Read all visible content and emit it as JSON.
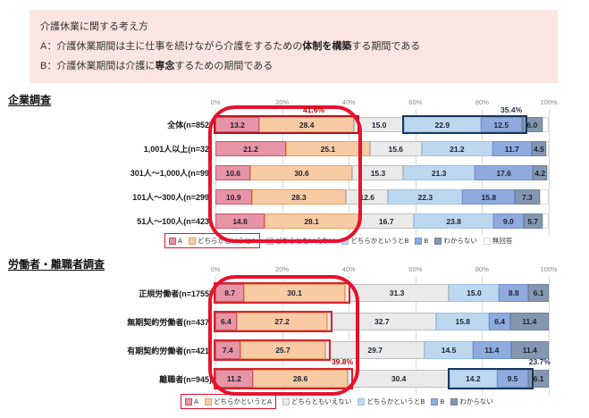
{
  "header": {
    "title": "介護休業に関する考え方",
    "line_a": {
      "pre": "A：介護休業期間は主に仕事を続けながら介護をするための",
      "bold": "体制を構築",
      "post": "する期間である"
    },
    "line_b": {
      "pre": "B：介護休業期間は介護に",
      "bold": "専念",
      "post": "するための期間である"
    }
  },
  "colors": {
    "header_bg": "#FBE5E3",
    "accent_red": "#E8112D",
    "red_text": "#C00000",
    "navy": "#17375E",
    "navy_text": "#1F3050",
    "segment_fills": [
      "#E794A6",
      "#F9CBA4",
      "#EAEAEA",
      "#BDD7EE",
      "#8FAADC",
      "#8497B0",
      "#FFFFFF"
    ],
    "segment_borders": [
      "#C9566B",
      "#ED9D60",
      "#BFBFBF",
      "#9DC3E6",
      "#7191CE",
      "#6E829B",
      "#D9D9D9"
    ]
  },
  "chart_data": [
    {
      "type": "bar",
      "stacked": true,
      "orientation": "horizontal",
      "title": "企業調査",
      "xlim": [
        0,
        100
      ],
      "x_ticks": [
        "0%",
        "20%",
        "40%",
        "60%",
        "80%",
        "100%"
      ],
      "grid": true,
      "categories": [
        "全体(n=852)",
        "1,001人以上(n=32)",
        "301人～1,000人(n=99)",
        "101人～300人(n=299)",
        "51人～100人(n=423)"
      ],
      "series": [
        {
          "name": "A",
          "values": [
            13.2,
            21.2,
            10.6,
            10.9,
            14.8
          ]
        },
        {
          "name": "どちらかというとA",
          "values": [
            28.4,
            25.1,
            30.6,
            28.3,
            28.1
          ]
        },
        {
          "name": "どちらともいえない",
          "values": [
            15.0,
            15.6,
            15.3,
            12.6,
            16.7
          ]
        },
        {
          "name": "どちらかというとB",
          "values": [
            22.9,
            21.2,
            21.3,
            22.3,
            23.8
          ]
        },
        {
          "name": "B",
          "values": [
            12.5,
            11.7,
            17.6,
            15.8,
            9.0
          ]
        },
        {
          "name": "わからない",
          "values": [
            6.0,
            4.5,
            4.2,
            7.3,
            5.7
          ]
        }
      ],
      "legend": {
        "labels": [
          "A",
          "どちらかというとA",
          "どちらともいえない",
          "どちらかというとB",
          "B",
          "わからない",
          "無回答"
        ],
        "boxed_first": 2,
        "position": "bottom"
      },
      "annotations": [
        {
          "text": "41.6%",
          "color": "red",
          "x_pct": 29.5,
          "anchor": "center"
        },
        {
          "text": "35.4%",
          "color": "navy",
          "x_pct": 92.0,
          "anchor": "right"
        }
      ],
      "highlight_boxes": [
        {
          "row": 0,
          "from": 0,
          "to": 41.6,
          "color": "red"
        },
        {
          "row": 0,
          "from": 56.6,
          "to": 92.0,
          "color": "navy"
        }
      ],
      "oval": {
        "from": -2.2,
        "to": 41.9
      }
    },
    {
      "type": "bar",
      "stacked": true,
      "orientation": "horizontal",
      "title": "労働者・離職者調査",
      "xlim": [
        0,
        100
      ],
      "x_ticks": [
        "0%",
        "20%",
        "40%",
        "60%",
        "80%",
        "100%"
      ],
      "grid": true,
      "categories": [
        "正規労働者(n=1755)",
        "無期契約労働者(n=437)",
        "有期契約労働者(n=421)",
        "離職者(n=945)"
      ],
      "series": [
        {
          "name": "A",
          "values": [
            8.7,
            6.4,
            7.4,
            11.2
          ]
        },
        {
          "name": "どちらかというとA",
          "values": [
            30.1,
            27.2,
            25.7,
            28.6
          ]
        },
        {
          "name": "どちらともいえない",
          "values": [
            31.3,
            32.7,
            29.7,
            30.4
          ]
        },
        {
          "name": "どちらかというとB",
          "values": [
            15.0,
            15.8,
            14.5,
            14.2
          ]
        },
        {
          "name": "B",
          "values": [
            8.8,
            6.4,
            11.4,
            9.5
          ]
        },
        {
          "name": "わからない",
          "values": [
            6.1,
            11.4,
            11.4,
            6.1
          ]
        }
      ],
      "legend": {
        "labels": [
          "A",
          "どちらかというとA",
          "どちらともいえない",
          "どちらかというとB",
          "B",
          "わからない"
        ],
        "boxed_first": 2,
        "position": "bottom"
      },
      "annotations": [
        {
          "text": "39.8%",
          "color": "red",
          "x_pct": 41.3,
          "anchor": "right"
        },
        {
          "text": "23.7%",
          "color": "navy",
          "x_pct": 100.5,
          "anchor": "right"
        }
      ],
      "highlight_boxes": [
        {
          "row": 0,
          "from": 0,
          "to": 38.8,
          "color": "red"
        },
        {
          "row": 1,
          "from": 0,
          "to": 33.6,
          "color": "red"
        },
        {
          "row": 2,
          "from": 0,
          "to": 33.1,
          "color": "red"
        },
        {
          "row": 3,
          "from": 0,
          "to": 39.8,
          "color": "red"
        },
        {
          "row": 3,
          "from": 70.2,
          "to": 93.9,
          "color": "navy"
        }
      ],
      "oval": {
        "from": -2.2,
        "to": 41.0
      }
    }
  ]
}
